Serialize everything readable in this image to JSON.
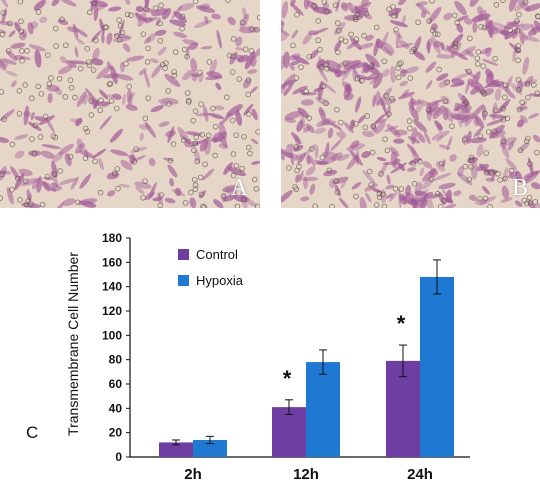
{
  "panels": {
    "a": {
      "label": "A"
    },
    "b": {
      "label": "B"
    },
    "c": {
      "label": "C"
    }
  },
  "colors": {
    "control": "#6f3ea2",
    "hypoxia": "#1f78d1",
    "micro_background": "#e6d6c8",
    "micro_cell": "#a35a98"
  },
  "chart_data": {
    "type": "bar",
    "title": "",
    "xlabel": "",
    "ylabel": "Transmembrane Cell Number",
    "ylim": [
      0,
      180
    ],
    "yticks": [
      0,
      20,
      40,
      60,
      80,
      100,
      120,
      140,
      160,
      180
    ],
    "categories": [
      "2h",
      "12h",
      "24h"
    ],
    "series": [
      {
        "name": "Control",
        "values": [
          12,
          41,
          79
        ],
        "errors": [
          2,
          6,
          13
        ]
      },
      {
        "name": "Hypoxia",
        "values": [
          14,
          78,
          148
        ],
        "errors": [
          3,
          10,
          14
        ]
      }
    ],
    "significance": [
      "",
      "*",
      "*"
    ],
    "legend_position": "top-left",
    "grid": false
  }
}
